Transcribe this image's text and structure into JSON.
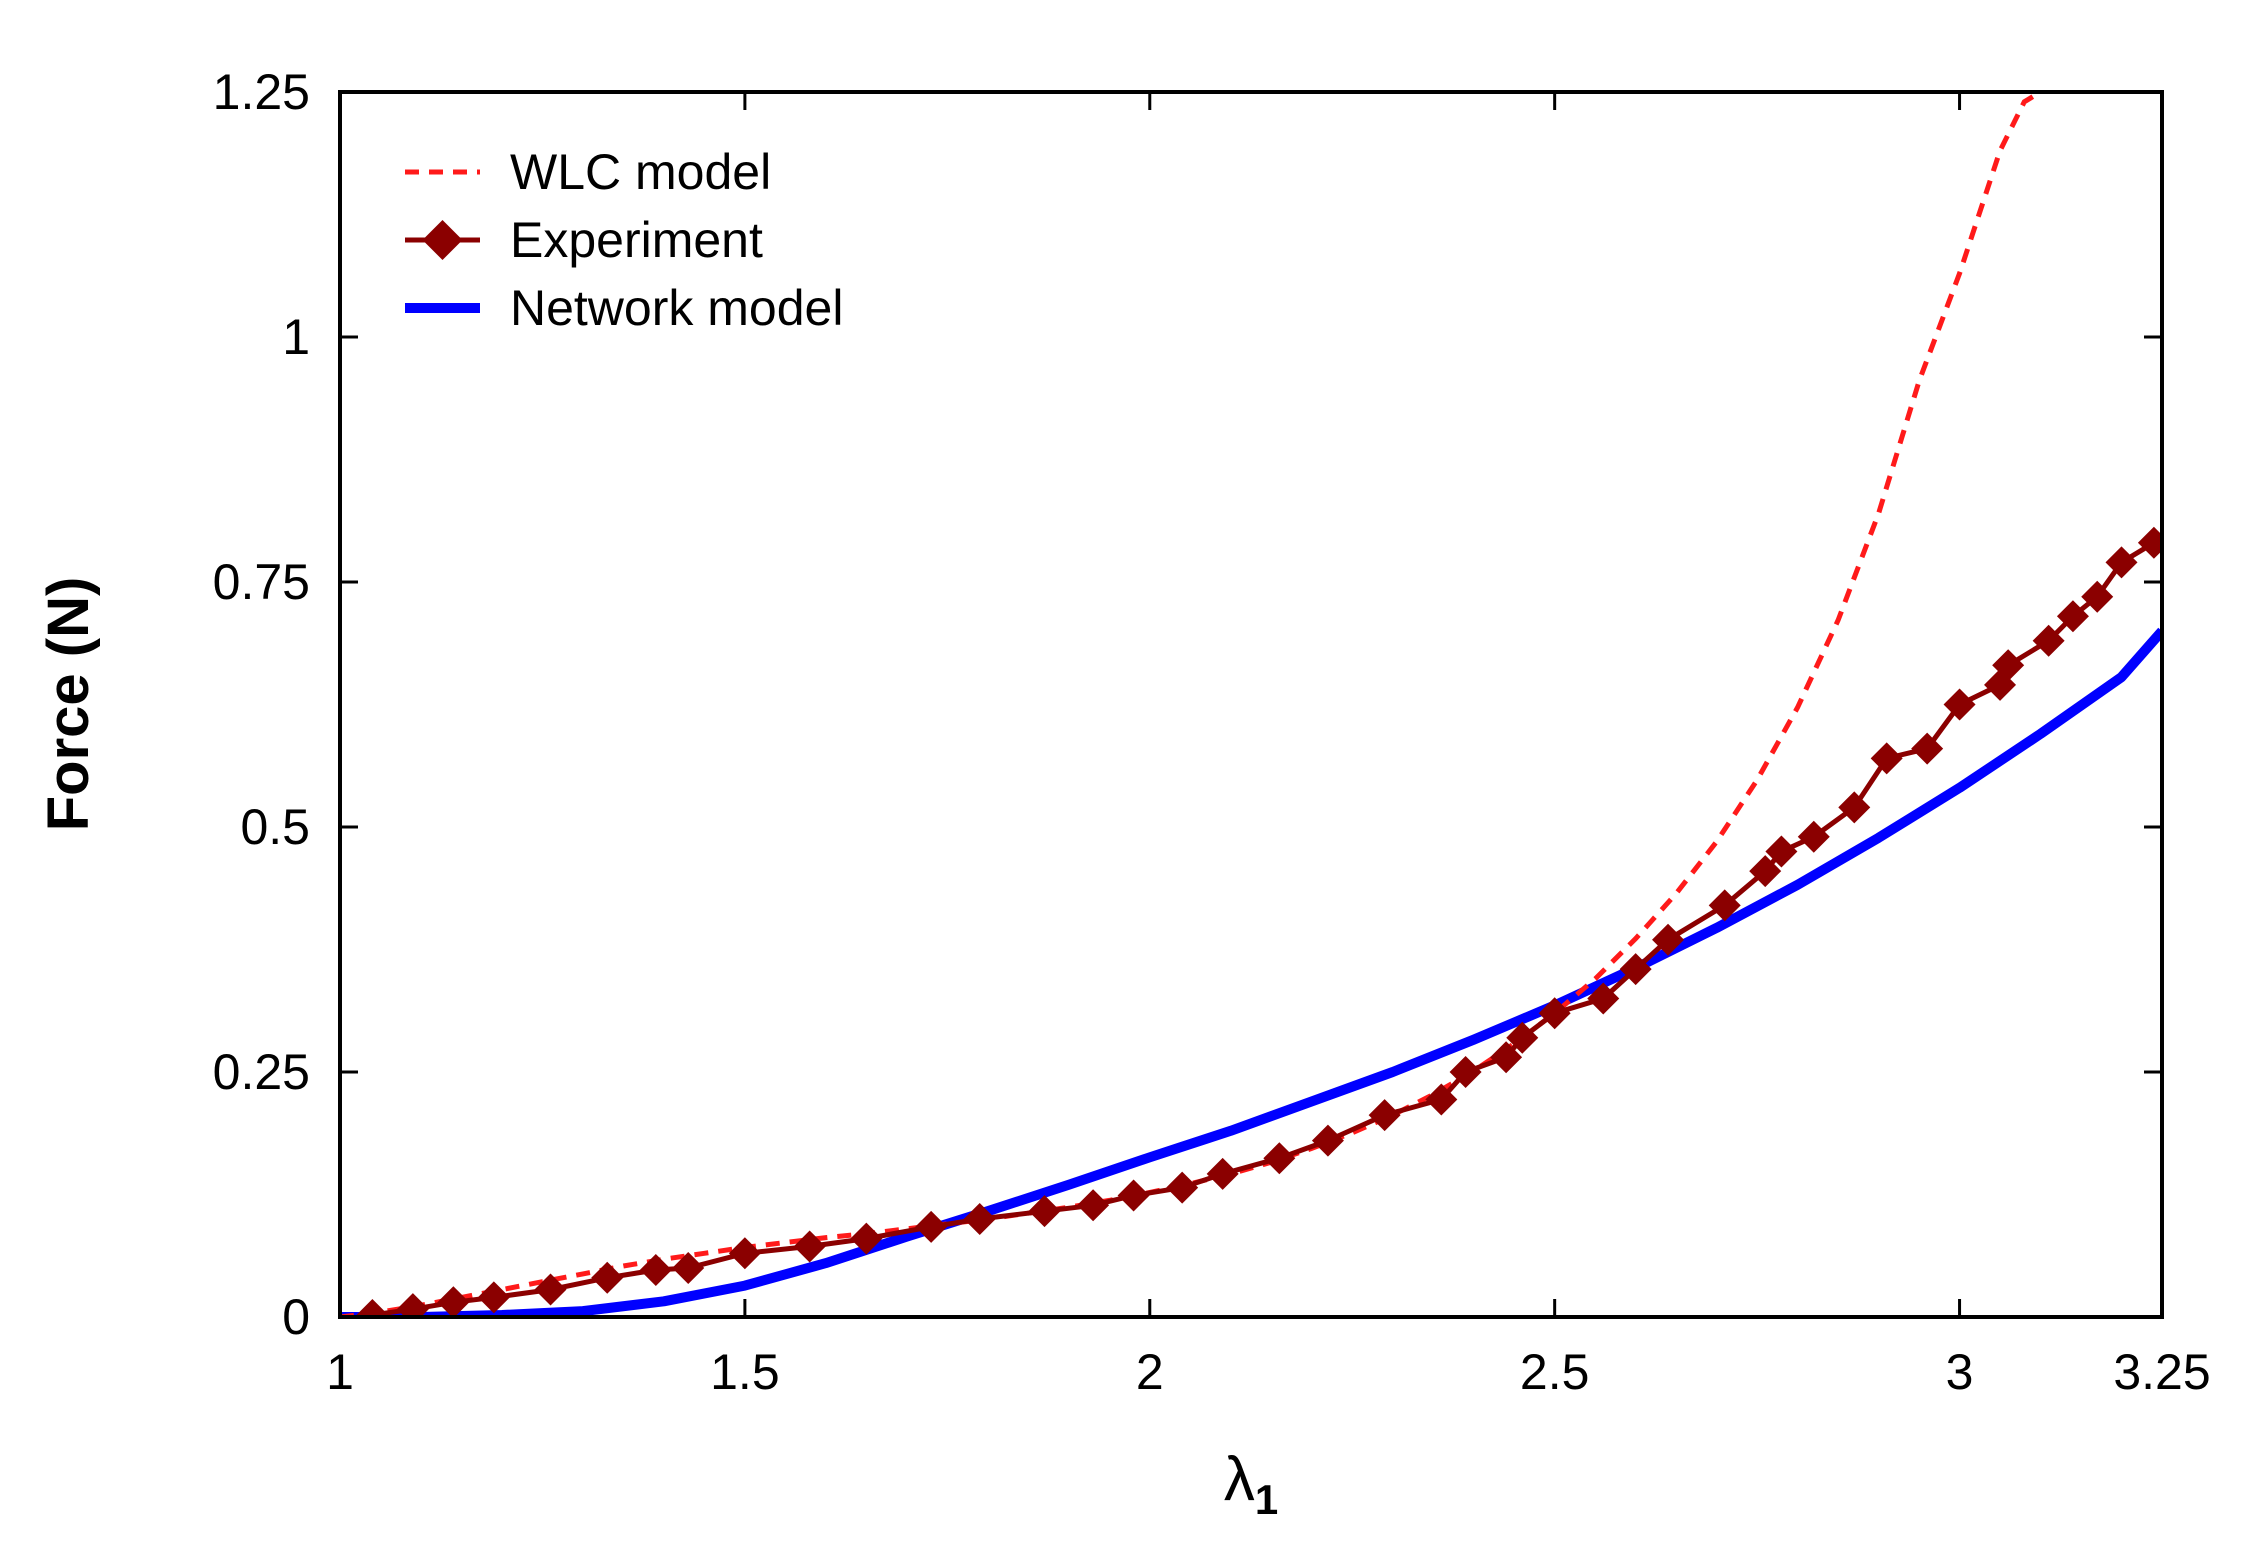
{
  "chart_data": {
    "type": "line",
    "title": "",
    "xlabel": "λ",
    "xlabel_subscript": "1",
    "ylabel": "Force (N)",
    "xlim": [
      1,
      3.25
    ],
    "ylim": [
      0,
      1.25
    ],
    "xticks": [
      1,
      1.5,
      2,
      2.5,
      3,
      3.25
    ],
    "xtick_labels": [
      "1",
      "1.5",
      "2",
      "2.5",
      "3",
      "3.25"
    ],
    "yticks": [
      0,
      0.25,
      0.5,
      0.75,
      1,
      1.25
    ],
    "ytick_labels": [
      "0",
      "0.25",
      "0.5",
      "0.75",
      "1",
      "1.25"
    ],
    "grid": false,
    "legend_position": "top-left",
    "series": [
      {
        "name": "WLC model",
        "style": "dashed",
        "color": "#ff1a1a",
        "x": [
          1.0,
          1.05,
          1.1,
          1.15,
          1.2,
          1.25,
          1.3,
          1.35,
          1.4,
          1.45,
          1.5,
          1.55,
          1.6,
          1.65,
          1.7,
          1.75,
          1.8,
          1.85,
          1.9,
          1.95,
          2.0,
          2.05,
          2.1,
          2.15,
          2.2,
          2.25,
          2.3,
          2.35,
          2.4,
          2.45,
          2.5,
          2.55,
          2.6,
          2.65,
          2.7,
          2.75,
          2.8,
          2.85,
          2.9,
          2.95,
          3.0,
          3.05,
          3.08,
          3.1
        ],
        "y": [
          0.0,
          0.005,
          0.012,
          0.02,
          0.028,
          0.036,
          0.044,
          0.052,
          0.059,
          0.065,
          0.071,
          0.076,
          0.081,
          0.085,
          0.09,
          0.095,
          0.1,
          0.106,
          0.112,
          0.119,
          0.127,
          0.136,
          0.146,
          0.158,
          0.172,
          0.188,
          0.206,
          0.227,
          0.251,
          0.279,
          0.31,
          0.345,
          0.386,
          0.432,
          0.485,
          0.548,
          0.622,
          0.711,
          0.82,
          0.955,
          1.065,
          1.19,
          1.24,
          1.25
        ]
      },
      {
        "name": "Experiment",
        "style": "line-diamond",
        "color": "#8b0000",
        "x": [
          1.04,
          1.09,
          1.14,
          1.19,
          1.26,
          1.33,
          1.39,
          1.43,
          1.5,
          1.58,
          1.65,
          1.73,
          1.79,
          1.87,
          1.93,
          1.98,
          2.04,
          2.09,
          2.16,
          2.22,
          2.29,
          2.36,
          2.39,
          2.44,
          2.46,
          2.5,
          2.56,
          2.6,
          2.64,
          2.71,
          2.76,
          2.78,
          2.82,
          2.87,
          2.91,
          2.96,
          3.0,
          3.05,
          3.06,
          3.11,
          3.14,
          3.17,
          3.2,
          3.24
        ],
        "y": [
          0.002,
          0.008,
          0.015,
          0.02,
          0.028,
          0.04,
          0.048,
          0.05,
          0.065,
          0.072,
          0.08,
          0.092,
          0.1,
          0.108,
          0.114,
          0.124,
          0.132,
          0.146,
          0.162,
          0.18,
          0.206,
          0.222,
          0.25,
          0.265,
          0.285,
          0.31,
          0.325,
          0.355,
          0.385,
          0.42,
          0.455,
          0.475,
          0.49,
          0.52,
          0.57,
          0.58,
          0.625,
          0.645,
          0.665,
          0.69,
          0.715,
          0.735,
          0.77,
          0.79
        ]
      },
      {
        "name": "Network model",
        "style": "solid",
        "color": "#0000ff",
        "x": [
          1.0,
          1.1,
          1.2,
          1.3,
          1.4,
          1.5,
          1.6,
          1.7,
          1.8,
          1.9,
          2.0,
          2.1,
          2.2,
          2.3,
          2.4,
          2.5,
          2.6,
          2.7,
          2.8,
          2.9,
          3.0,
          3.1,
          3.2,
          3.25
        ],
        "y": [
          0.0,
          0.0,
          0.002,
          0.006,
          0.016,
          0.032,
          0.055,
          0.082,
          0.108,
          0.135,
          0.163,
          0.19,
          0.22,
          0.25,
          0.283,
          0.318,
          0.356,
          0.397,
          0.441,
          0.489,
          0.54,
          0.595,
          0.653,
          0.7
        ]
      }
    ]
  }
}
